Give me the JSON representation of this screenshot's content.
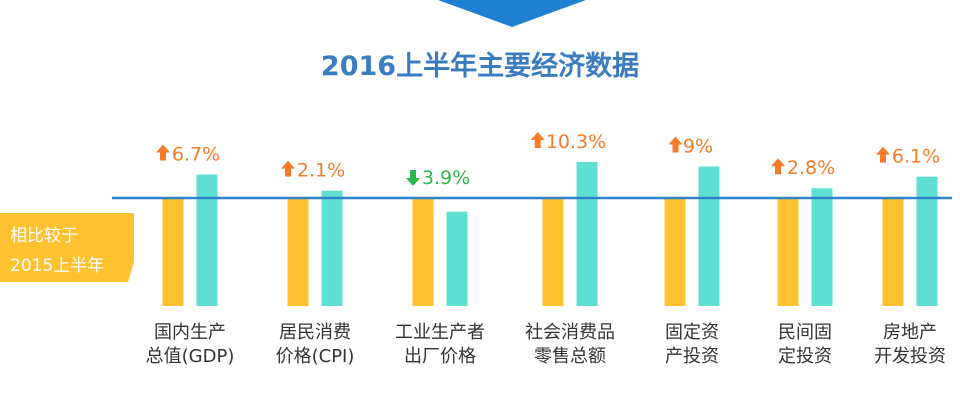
{
  "colors": {
    "title": "#3a7cc0",
    "banner": "#1f7fd1",
    "baseline": "#2f82c7",
    "bar_2015": "#ffc12f",
    "bar_2016": "#5fdfd2",
    "up": "#f47b2a",
    "down": "#2cb84c",
    "ribbon": "#ffc12f",
    "category_text": "#333333"
  },
  "ribbon": {
    "line1": "相比较于",
    "line2": "2015上半年"
  },
  "chart_data": {
    "type": "bar",
    "title": "2016上半年主要经济数据",
    "categories": [
      [
        "国内生产",
        "总值(GDP)"
      ],
      [
        "居民消费",
        "价格(CPI)"
      ],
      [
        "工业生产者",
        "出厂价格"
      ],
      [
        "社会消费品",
        "零售总额"
      ],
      [
        "固定资",
        "产投资"
      ],
      [
        "民间固",
        "定投资"
      ],
      [
        "房地产",
        "开发投资"
      ]
    ],
    "changes": [
      {
        "label": "6.7%",
        "value": 6.7,
        "direction": "up",
        "icon": "arrow-up-icon"
      },
      {
        "label": "2.1%",
        "value": 2.1,
        "direction": "up",
        "icon": "arrow-up-icon"
      },
      {
        "label": "3.9%",
        "value": -3.9,
        "direction": "down",
        "icon": "arrow-down-icon"
      },
      {
        "label": "10.3%",
        "value": 10.3,
        "direction": "up",
        "icon": "arrow-up-icon"
      },
      {
        "label": "9%",
        "value": 9,
        "direction": "up",
        "icon": "arrow-up-icon"
      },
      {
        "label": "2.8%",
        "value": 2.8,
        "direction": "up",
        "icon": "arrow-up-icon"
      },
      {
        "label": "6.1%",
        "value": 6.1,
        "direction": "up",
        "icon": "arrow-up-icon"
      }
    ],
    "legend": "none",
    "grid": false
  }
}
